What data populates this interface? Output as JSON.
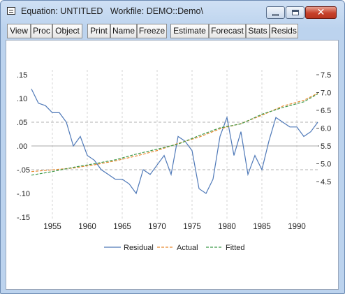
{
  "window": {
    "title": "Equation: UNTITLED   Workfile: DEMO::Demo\\",
    "icon": "equation-window-icon",
    "controls": {
      "minimize": "minimize-icon",
      "maximize": "maximize-icon",
      "close": "close-icon"
    }
  },
  "toolbar": {
    "buttons": [
      "View",
      "Proc",
      "Object",
      "Print",
      "Name",
      "Freeze",
      "Estimate",
      "Forecast",
      "Stats",
      "Resids"
    ]
  },
  "colors": {
    "residual": "#4f79b8",
    "actual": "#e8892f",
    "fitted": "#3f9a4a",
    "guide": "#b0b0b0"
  },
  "chart_data": {
    "type": "line",
    "x_ticks": [
      "1955",
      "1960",
      "1965",
      "1970",
      "1975",
      "1980",
      "1985",
      "1990"
    ],
    "x_range": [
      1952.0,
      1993.0
    ],
    "left_axis": {
      "ticks": [
        ".15",
        ".10",
        ".05",
        ".00",
        "-.05",
        "-.10",
        "-.15"
      ],
      "range": [
        -0.15,
        0.15
      ]
    },
    "right_axis": {
      "ticks": [
        "4.5",
        "5.0",
        "5.5",
        "6.0",
        "6.5",
        "7.0",
        "7.5"
      ],
      "range": [
        3.5,
        7.5
      ]
    },
    "reference_lines_left": [
      0.05,
      0.0,
      -0.05
    ],
    "legend": {
      "position": "bottom-center",
      "entries": [
        "Residual",
        "Actual",
        "Fitted"
      ]
    },
    "series": [
      {
        "name": "Residual",
        "axis": "left",
        "style": "solid",
        "x": [
          1952,
          1953,
          1954,
          1955,
          1956,
          1957,
          1958,
          1959,
          1960,
          1961,
          1962,
          1963,
          1964,
          1965,
          1966,
          1967,
          1968,
          1969,
          1970,
          1971,
          1972,
          1973,
          1974,
          1975,
          1976,
          1977,
          1978,
          1979,
          1980,
          1981,
          1982,
          1983,
          1984,
          1985,
          1986,
          1987,
          1988,
          1989,
          1990,
          1991,
          1992,
          1993
        ],
        "values": [
          0.12,
          0.09,
          0.085,
          0.07,
          0.07,
          0.05,
          0.0,
          0.02,
          -0.02,
          -0.03,
          -0.05,
          -0.06,
          -0.07,
          -0.07,
          -0.08,
          -0.1,
          -0.05,
          -0.06,
          -0.04,
          -0.02,
          -0.06,
          0.02,
          0.01,
          -0.01,
          -0.09,
          -0.1,
          -0.07,
          0.02,
          0.06,
          -0.02,
          0.03,
          -0.06,
          -0.02,
          -0.05,
          0.01,
          0.06,
          0.05,
          0.04,
          0.04,
          0.02,
          0.03,
          0.05
        ]
      },
      {
        "name": "Actual",
        "axis": "right",
        "style": "dashed",
        "x": [
          1952,
          1955,
          1958,
          1961,
          1964,
          1967,
          1970,
          1973,
          1976,
          1979,
          1982,
          1985,
          1988,
          1991,
          1993
        ],
        "values": [
          4.78,
          4.83,
          4.88,
          4.97,
          5.08,
          5.22,
          5.37,
          5.57,
          5.75,
          5.98,
          6.13,
          6.36,
          6.62,
          6.78,
          6.98
        ]
      },
      {
        "name": "Fitted",
        "axis": "right",
        "style": "dashed",
        "x": [
          1952,
          1955,
          1958,
          1961,
          1964,
          1967,
          1970,
          1973,
          1976,
          1979,
          1982,
          1985,
          1988,
          1991,
          1993
        ],
        "values": [
          4.68,
          4.78,
          4.9,
          5.0,
          5.11,
          5.27,
          5.41,
          5.55,
          5.79,
          6.01,
          6.12,
          6.39,
          6.58,
          6.74,
          6.96
        ]
      }
    ]
  }
}
